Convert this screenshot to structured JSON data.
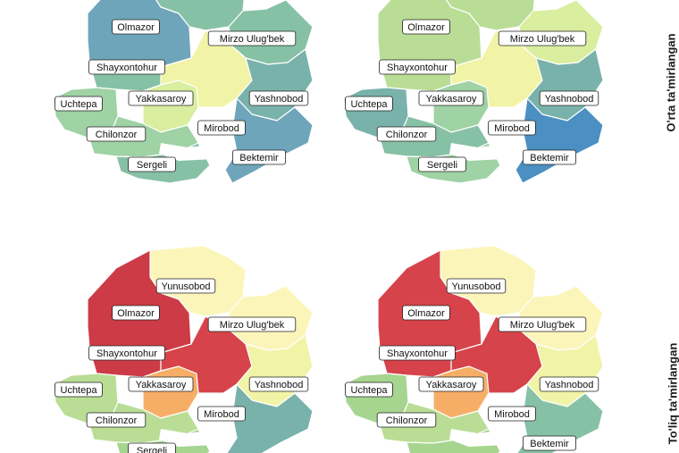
{
  "row_labels": [
    "O'rta ta'mirlangan",
    "To'liq ta'mirlangan"
  ],
  "district_names": {
    "olmazor": "Olmazor",
    "shayxontohur": "Shayxontohur",
    "uchtepa": "Uchtepa",
    "yakkasaroy": "Yakkasaroy",
    "mirzo": "Mirzo Ulug'bek",
    "yashnobod": "Yashnobod",
    "mirobod": "Mirobod",
    "chilonzor": "Chilonzor",
    "sergeli": "Sergeli",
    "bektemir": "Bektemir",
    "yunusobod": "Yunusobod"
  },
  "colors": {
    "red": "#d7434a",
    "red_dark": "#cc3b46",
    "orange": "#f6ae67",
    "pale_yellow": "#fbf5ba",
    "yellow_light": "#f1f4a6",
    "yellow_green": "#d9ee9e",
    "light_green": "#b9dd95",
    "green": "#a6d58f",
    "mint": "#9fd2a4",
    "teal_green": "#86c1a6",
    "teal": "#79b2ab",
    "steel": "#6ea5bb",
    "blue": "#4b8fc3",
    "blue_dark": "#3f86c0",
    "gray": "#8a8a8a"
  },
  "panels": [
    {
      "row": "O'rta ta'mirlangan",
      "fills": {
        "olmazor": "steel",
        "shayxontohur": "teal_green",
        "uchtepa": "mint",
        "yakkasaroy": "yellow_green",
        "mirzo": "teal_green",
        "yashnobod": "teal",
        "mirobod": "yellow_light",
        "chilonzor": "mint",
        "sergeli": "teal_green",
        "bektemir": "steel",
        "yunusobod": "teal_green"
      },
      "labels": [
        "olmazor",
        "shayxontohur",
        "uchtepa",
        "yakkasaroy",
        "mirzo",
        "yashnobod",
        "mirobod",
        "chilonzor",
        "sergeli",
        "bektemir"
      ]
    },
    {
      "row": "O'rta ta'mirlangan",
      "fills": {
        "olmazor": "light_green",
        "shayxontohur": "light_green",
        "uchtepa": "teal",
        "yakkasaroy": "mint",
        "mirzo": "yellow_green",
        "yashnobod": "teal",
        "mirobod": "yellow_light",
        "chilonzor": "teal_green",
        "sergeli": "mint",
        "bektemir": "blue",
        "yunusobod": "light_green"
      },
      "labels": [
        "olmazor",
        "shayxontohur",
        "mirzo",
        "uchtepa",
        "yakkasaroy",
        "yashnobod",
        "mirobod",
        "chilonzor",
        "sergeli",
        "bektemir"
      ]
    },
    {
      "row": "To'liq ta'mirlangan",
      "fills": {
        "olmazor": "red_dark",
        "shayxontohur": "red_dark",
        "uchtepa": "light_green",
        "yakkasaroy": "orange",
        "mirzo": "pale_yellow",
        "yashnobod": "yellow_light",
        "mirobod": "red",
        "chilonzor": "light_green",
        "sergeli": "green",
        "bektemir": "teal",
        "yunusobod": "pale_yellow"
      },
      "labels": [
        "yunusobod",
        "olmazor",
        "mirzo",
        "shayxontohur",
        "uchtepa",
        "yakkasaroy",
        "yashnobod",
        "chilonzor",
        "mirobod",
        "sergeli"
      ]
    },
    {
      "row": "To'liq ta'mirlangan",
      "fills": {
        "olmazor": "red",
        "shayxontohur": "red",
        "uchtepa": "green",
        "yakkasaroy": "orange",
        "mirzo": "pale_yellow",
        "yashnobod": "yellow_light",
        "mirobod": "red",
        "chilonzor": "light_green",
        "sergeli": "green",
        "bektemir": "teal_green",
        "yunusobod": "pale_yellow"
      },
      "labels": [
        "yunusobod",
        "olmazor",
        "mirzo",
        "shayxontohur",
        "uchtepa",
        "yakkasaroy",
        "yashnobod",
        "chilonzor",
        "mirobod",
        "bektemir"
      ]
    }
  ]
}
